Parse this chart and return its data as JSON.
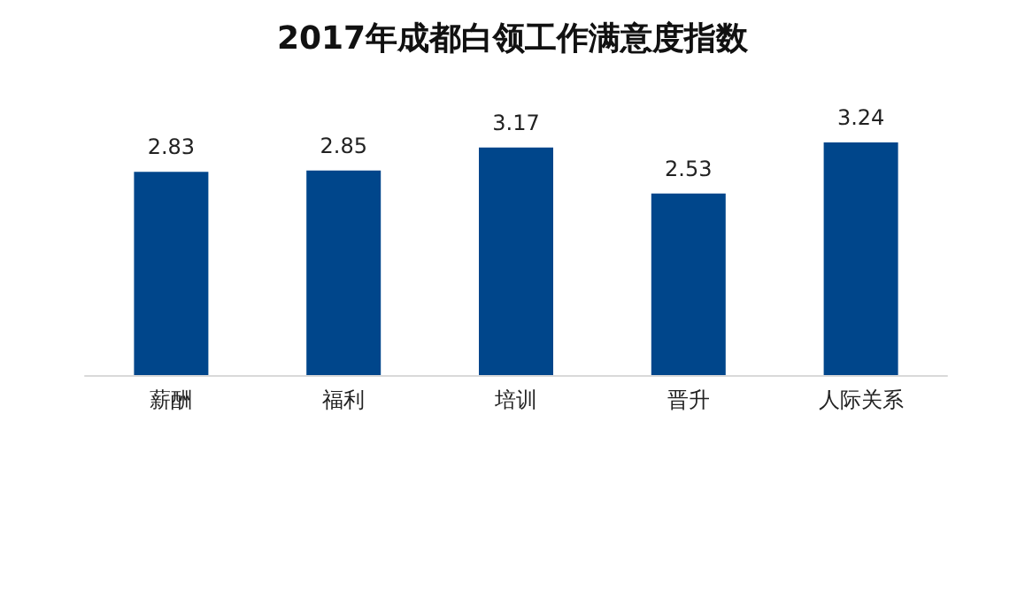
{
  "chart_data": {
    "type": "bar",
    "title": "2017年成都白领工作满意度指数",
    "categories": [
      "薪酬",
      "福利",
      "培训",
      "晋升",
      "人际关系"
    ],
    "values": [
      2.83,
      2.85,
      3.17,
      2.53,
      3.24
    ],
    "color": "#00468b",
    "data_labels": true
  }
}
